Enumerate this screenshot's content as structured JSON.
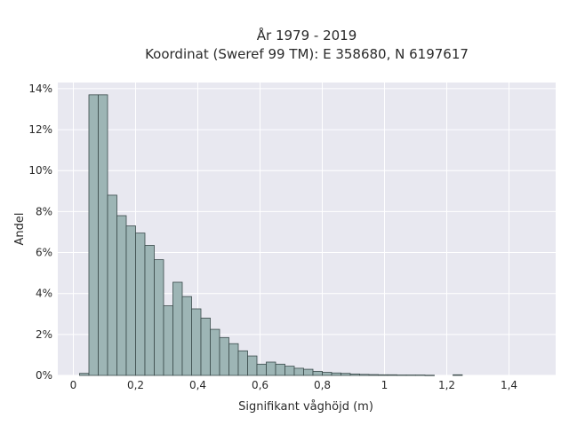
{
  "chart_data": {
    "type": "bar",
    "title": "År 1979 - 2019",
    "subtitle": "Koordinat (Sweref 99 TM): E 358680, N 6197617",
    "xlabel": "Signifikant våghöjd (m)",
    "ylabel": "Andel",
    "xlim": [
      -0.05,
      1.55
    ],
    "ylim": [
      0,
      14.3
    ],
    "x_ticks": [
      0,
      0.2,
      0.4,
      0.6,
      0.8,
      1.0,
      1.2,
      1.4
    ],
    "x_tick_labels": [
      "0",
      "0,2",
      "0,4",
      "0,6",
      "0,8",
      "1",
      "1,2",
      "1,4"
    ],
    "y_ticks": [
      0,
      2,
      4,
      6,
      8,
      10,
      12,
      14
    ],
    "y_tick_labels": [
      "0%",
      "2%",
      "4%",
      "6%",
      "8%",
      "10%",
      "12%",
      "14%"
    ],
    "bin_width": 0.03,
    "bar_color": "#9db5b5",
    "bar_edge_color": "#3a4a4a",
    "plot_background": "#e8e8f0",
    "grid": true,
    "bins_start": [
      0.02,
      0.05,
      0.08,
      0.11,
      0.14,
      0.17,
      0.2,
      0.23,
      0.26,
      0.29,
      0.32,
      0.35,
      0.38,
      0.41,
      0.44,
      0.47,
      0.5,
      0.53,
      0.56,
      0.59,
      0.62,
      0.65,
      0.68,
      0.71,
      0.74,
      0.77,
      0.8,
      0.83,
      0.86,
      0.89,
      0.92,
      0.95,
      0.98,
      1.01,
      1.04,
      1.07,
      1.1,
      1.13,
      1.22
    ],
    "values": [
      0.1,
      13.7,
      13.7,
      8.8,
      7.8,
      7.3,
      6.95,
      6.35,
      5.65,
      3.4,
      4.55,
      3.85,
      3.25,
      2.8,
      2.25,
      1.85,
      1.55,
      1.2,
      0.95,
      0.55,
      0.65,
      0.55,
      0.45,
      0.35,
      0.3,
      0.2,
      0.15,
      0.12,
      0.1,
      0.07,
      0.05,
      0.04,
      0.03,
      0.03,
      0.02,
      0.02,
      0.02,
      0.01,
      0.03
    ]
  }
}
